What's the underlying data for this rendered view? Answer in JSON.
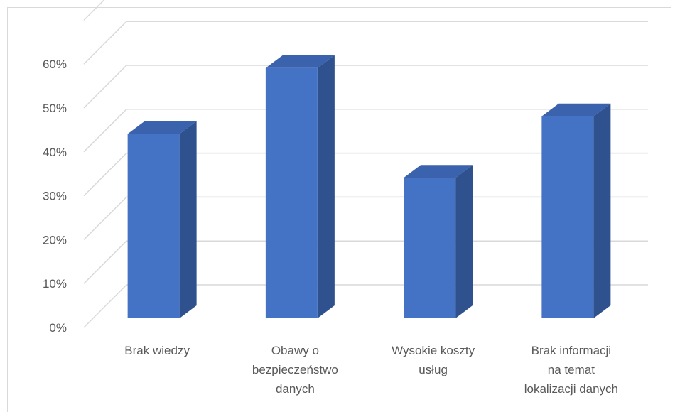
{
  "chart_data": {
    "type": "bar",
    "style": "3d-column",
    "categories": [
      [
        "Brak wiedzy"
      ],
      [
        "Obawy o",
        "bezpieczeństwo",
        "danych"
      ],
      [
        "Wysokie koszty",
        "usług"
      ],
      [
        "Brak informacji",
        "na temat",
        "lokalizacji danych"
      ]
    ],
    "values": [
      0.42,
      0.57,
      0.32,
      0.46
    ],
    "ylim": [
      0,
      0.6
    ],
    "yticks": [
      0,
      0.1,
      0.2,
      0.3,
      0.4,
      0.5,
      0.6
    ],
    "ytick_labels": [
      "0%",
      "10%",
      "20%",
      "30%",
      "40%",
      "50%",
      "60%"
    ],
    "grid": true,
    "legend": "none",
    "colors": {
      "front": "#4472c4",
      "side": "#2f528f",
      "top": "#3a62ad",
      "grid": "#d9d9d9",
      "text": "#595959"
    }
  }
}
